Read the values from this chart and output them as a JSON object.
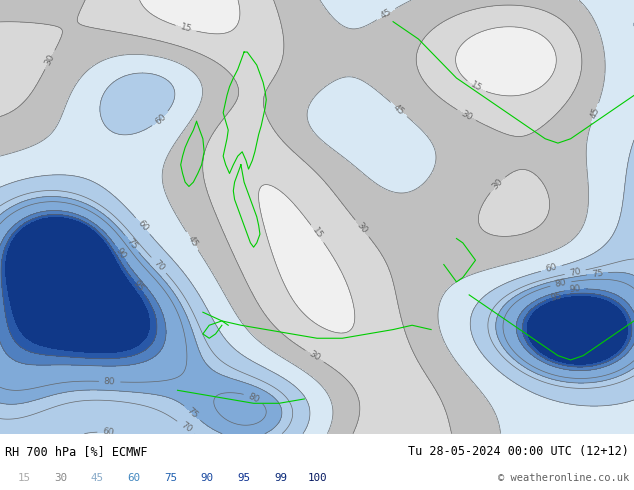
{
  "title_left": "RH 700 hPa [%] ECMWF",
  "title_right": "Tu 28-05-2024 00:00 UTC (12+12)",
  "copyright": "© weatheronline.co.uk",
  "colorbar_levels": [
    15,
    30,
    45,
    60,
    75,
    90,
    95,
    99,
    100
  ],
  "colors_filled": [
    "#f0f0f0",
    "#d8d8d8",
    "#c0c0c0",
    "#d8e8f4",
    "#b0cce8",
    "#80aad8",
    "#5080c0",
    "#2858a8",
    "#103888"
  ],
  "contour_color": "#606060",
  "coastline_color": "#00cc00",
  "background_color": "#ffffff",
  "text_color": "#000000",
  "copyright_color": "#606060",
  "cbar_text_colors": [
    "#aaaaaa",
    "#888888",
    "#88aac8",
    "#4488c0",
    "#2060b0",
    "#1848a0",
    "#0c3090",
    "#082878",
    "#051860"
  ],
  "fig_width": 6.34,
  "fig_height": 4.9,
  "dpi": 100
}
